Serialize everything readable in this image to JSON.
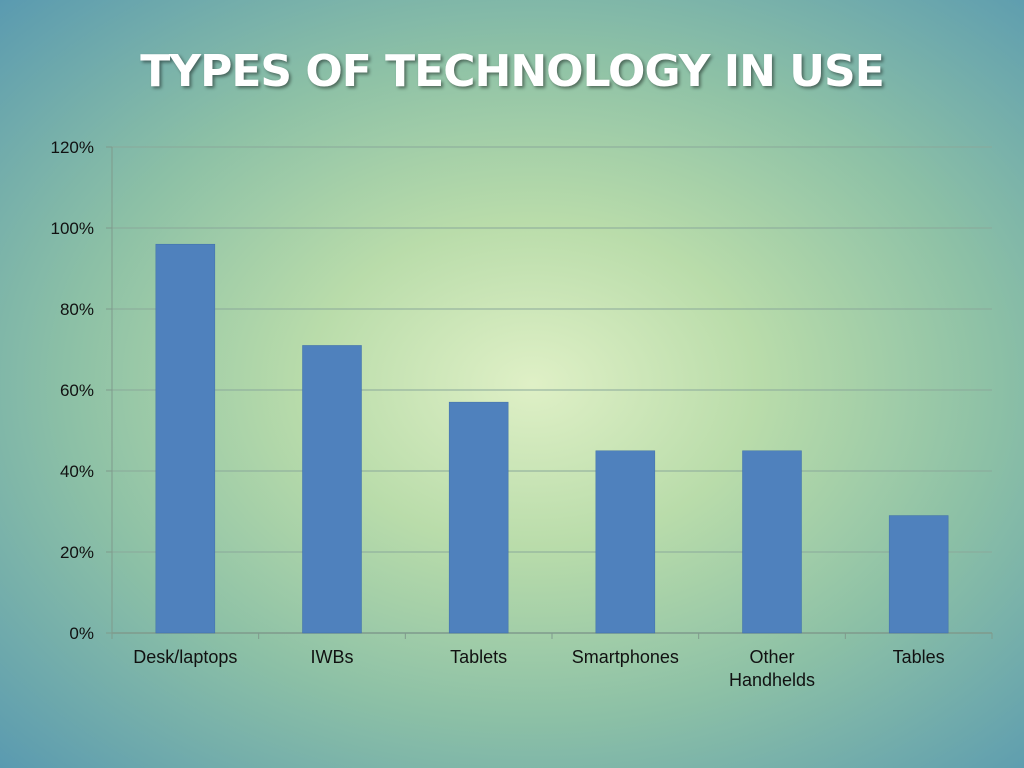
{
  "slide": {
    "title": "TYPES OF TECHNOLOGY IN USE"
  },
  "colors": {
    "bar": "#4f81bd",
    "gridline": "#8aa89a",
    "axis": "#7f9a8c"
  },
  "chart_data": {
    "type": "bar",
    "title": "TYPES OF TECHNOLOGY IN USE",
    "xlabel": "",
    "ylabel": "",
    "categories": [
      "Desk/laptops",
      "IWBs",
      "Tablets",
      "Smartphones",
      "Other Handhelds",
      "Tables"
    ],
    "category_lines": [
      [
        "Desk/laptops"
      ],
      [
        "IWBs"
      ],
      [
        "Tablets"
      ],
      [
        "Smartphones"
      ],
      [
        "Other",
        "Handhelds"
      ],
      [
        "Tables"
      ]
    ],
    "values": [
      0.96,
      0.71,
      0.57,
      0.45,
      0.45,
      0.29
    ],
    "ylim": [
      0,
      1.2
    ],
    "yticks": [
      0,
      0.2,
      0.4,
      0.6,
      0.8,
      1.0,
      1.2
    ],
    "ytick_labels": [
      "0%",
      "20%",
      "40%",
      "60%",
      "80%",
      "100%",
      "120%"
    ],
    "grid": true,
    "legend": "none"
  }
}
